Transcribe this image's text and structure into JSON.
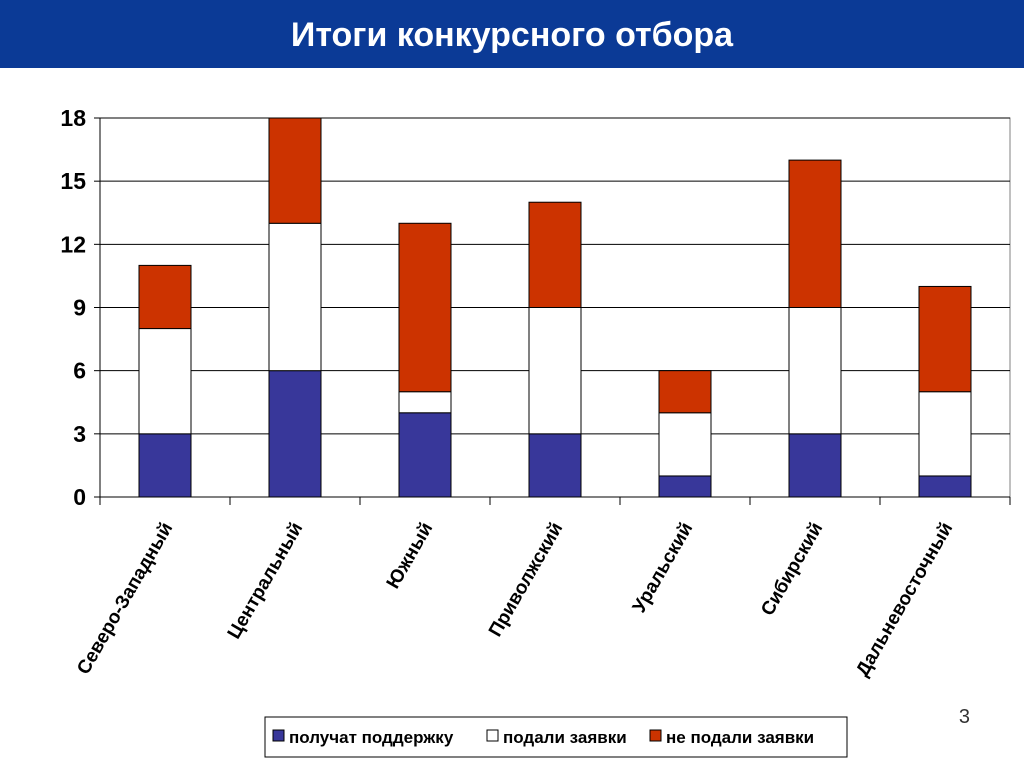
{
  "header": {
    "title": "Итоги конкурсного отбора",
    "background": "#0b3a96"
  },
  "page_number": "3",
  "chart_data": {
    "type": "bar",
    "stacked": true,
    "categories": [
      "Северо-Западный",
      "Центральный",
      "Южный",
      "Приволжский",
      "Уральский",
      "Сибирский",
      "Дальневосточный"
    ],
    "series": [
      {
        "name": "получат поддержку",
        "values": [
          3,
          6,
          4,
          3,
          1,
          3,
          1
        ],
        "color": "#38379a"
      },
      {
        "name": "подали заявки",
        "values": [
          5,
          7,
          1,
          6,
          3,
          6,
          4
        ],
        "color": "#ffffff"
      },
      {
        "name": "не подали заявки",
        "values": [
          3,
          5,
          8,
          5,
          2,
          7,
          5
        ],
        "color": "#cc3300"
      }
    ],
    "ylim": [
      0,
      18
    ],
    "yticks": [
      0,
      3,
      6,
      9,
      12,
      15,
      18
    ],
    "grid": true,
    "legend_position": "bottom"
  }
}
